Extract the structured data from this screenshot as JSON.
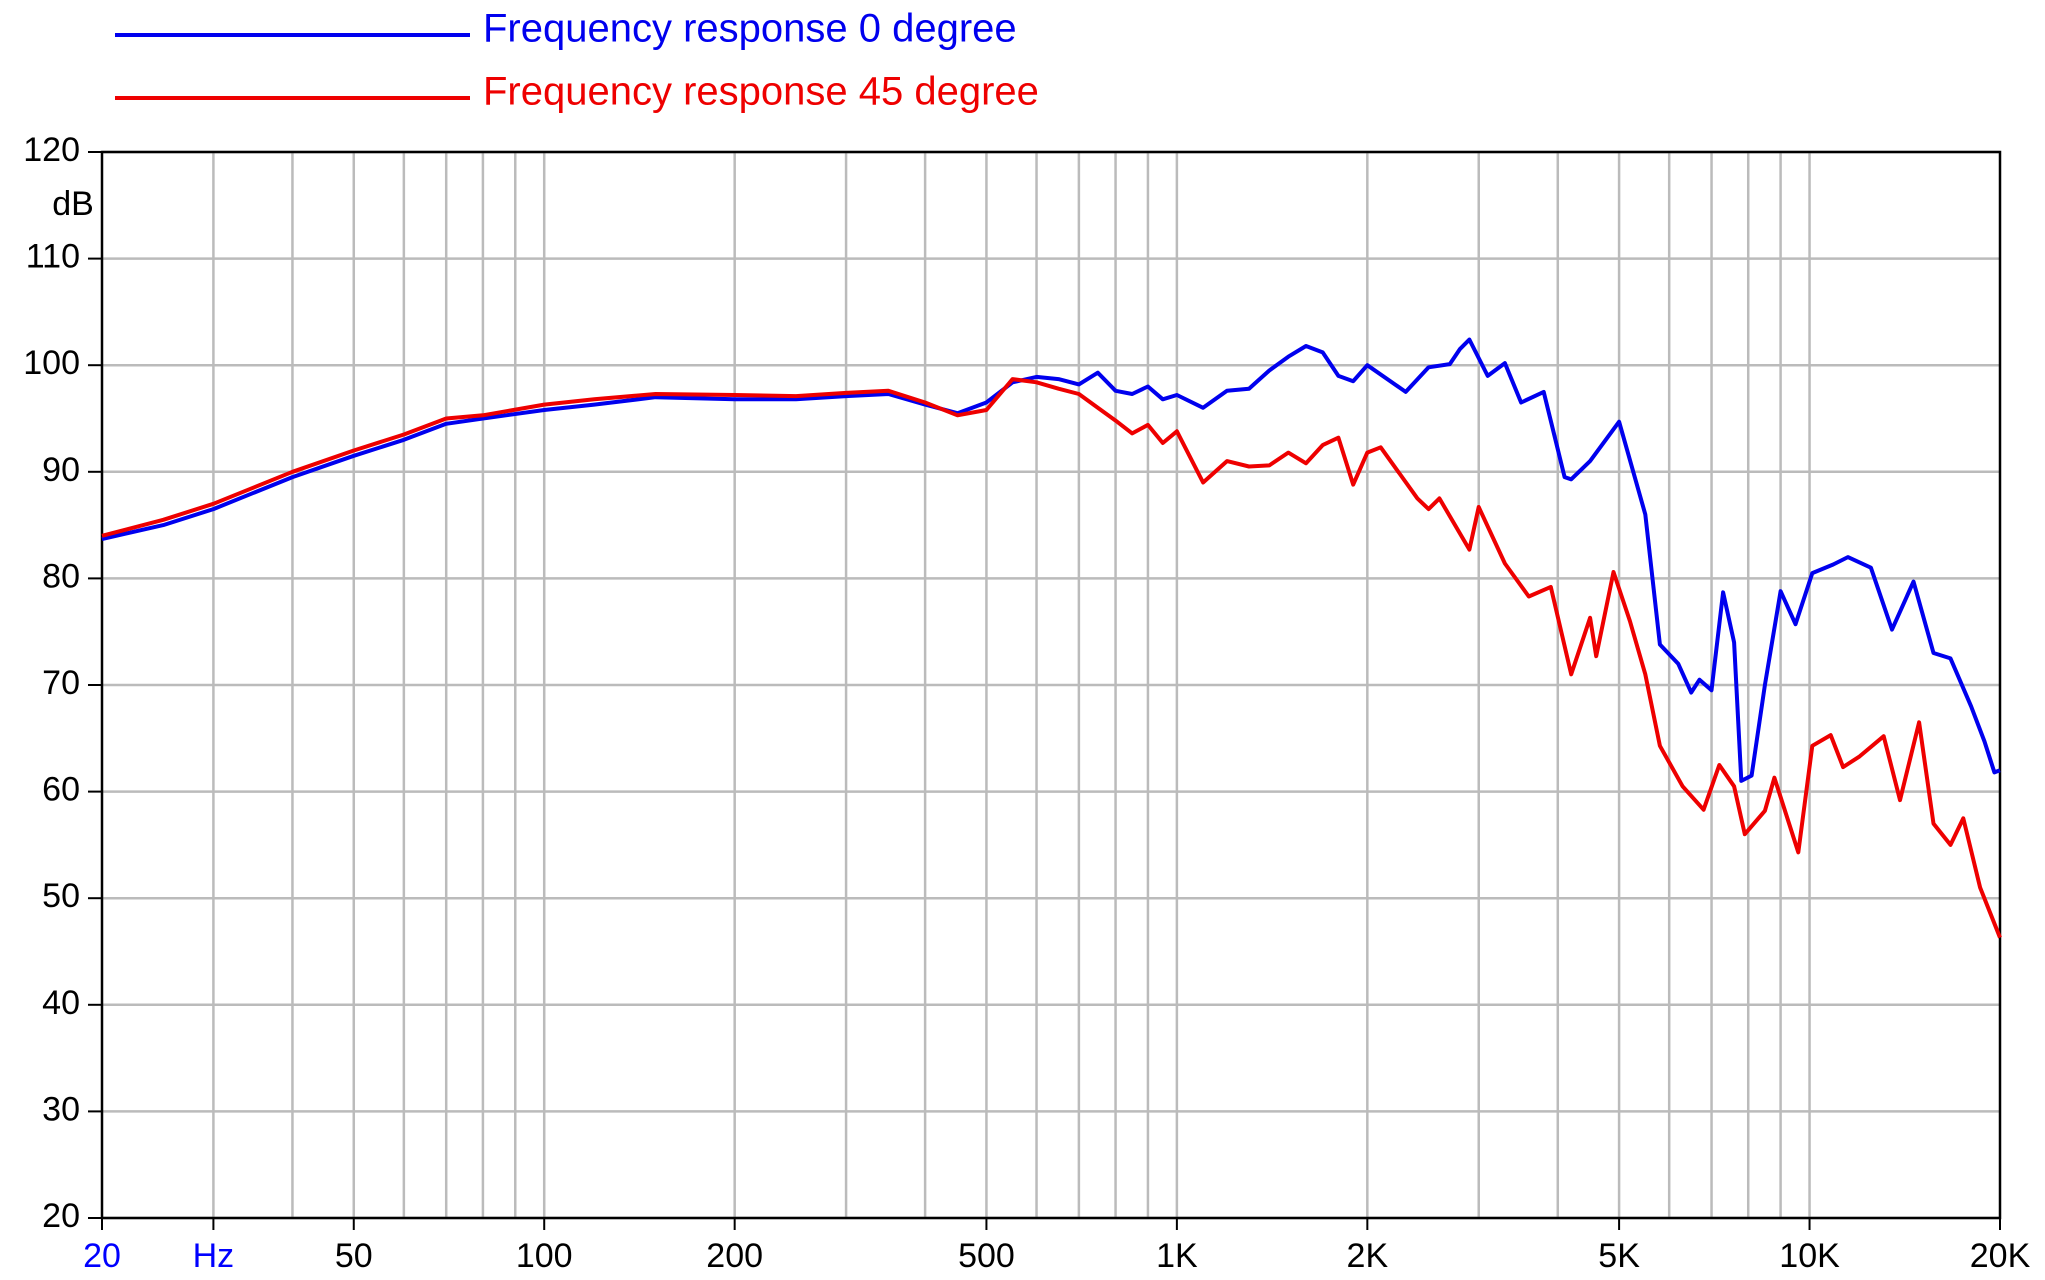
{
  "chart_data": {
    "type": "line",
    "y_unit": "dB",
    "xscale": "log",
    "xlim": [
      20,
      20000
    ],
    "ylim": [
      20,
      120
    ],
    "yticks": [
      20,
      30,
      40,
      50,
      60,
      70,
      80,
      90,
      100,
      110,
      120
    ],
    "xticks": [
      20,
      {
        "value": 30,
        "label": "Hz"
      },
      50,
      100,
      200,
      500,
      {
        "value": 1000,
        "label": "1K"
      },
      {
        "value": 2000,
        "label": "2K"
      },
      {
        "value": 5000,
        "label": "5K"
      },
      {
        "value": 10000,
        "label": "10K"
      },
      {
        "value": 20000,
        "label": "20K"
      }
    ],
    "xtick_colors": [
      "#0000ff",
      "#0000ff",
      "#000000",
      "#000000",
      "#000000",
      "#000000",
      "#000000",
      "#000000",
      "#000000",
      "#000000",
      "#000000"
    ],
    "xgrid": [
      30,
      40,
      50,
      60,
      70,
      80,
      90,
      100,
      200,
      300,
      400,
      500,
      600,
      700,
      800,
      900,
      1000,
      2000,
      3000,
      4000,
      5000,
      6000,
      7000,
      8000,
      9000,
      10000
    ],
    "grid": true,
    "series": [
      {
        "name": "Frequency response 0 degree",
        "color": "#0000ee",
        "x": [
          20,
          25,
          30,
          40,
          50,
          60,
          70,
          80,
          100,
          120,
          150,
          200,
          250,
          300,
          350,
          400,
          450,
          500,
          550,
          600,
          650,
          700,
          750,
          800,
          850,
          900,
          950,
          1000,
          1100,
          1200,
          1300,
          1400,
          1500,
          1600,
          1700,
          1800,
          1900,
          2000,
          2300,
          2500,
          2700,
          2800,
          2900,
          3100,
          3300,
          3500,
          3800,
          4100,
          4200,
          4500,
          5000,
          5500,
          5800,
          6200,
          6500,
          6700,
          7000,
          7300,
          7600,
          7800,
          8100,
          8500,
          9000,
          9500,
          10100,
          10900,
          11500,
          12500,
          13500,
          14600,
          15700,
          16700,
          18000,
          18900,
          19600,
          20000
        ],
        "values": [
          83.7,
          85,
          86.5,
          89.5,
          91.5,
          93,
          94.5,
          95,
          95.8,
          96.3,
          97,
          96.8,
          96.8,
          97.1,
          97.3,
          96.3,
          95.5,
          96.5,
          98.4,
          98.9,
          98.7,
          98.2,
          99.3,
          97.6,
          97.3,
          98,
          96.8,
          97.2,
          96,
          97.6,
          97.8,
          99.5,
          100.8,
          101.8,
          101.2,
          99,
          98.5,
          100,
          97.5,
          99.8,
          100.1,
          101.5,
          102.4,
          99,
          100.2,
          96.5,
          97.5,
          89.5,
          89.3,
          91,
          94.7,
          86,
          73.8,
          72,
          69.3,
          70.5,
          69.5,
          78.7,
          74,
          61,
          61.5,
          70,
          78.8,
          75.7,
          80.5,
          81.3,
          82,
          81,
          75.2,
          79.7,
          73,
          72.5,
          68,
          64.7,
          61.8,
          62
        ]
      },
      {
        "name": "Frequency response 45 degree",
        "color": "#ee0000",
        "x": [
          20,
          25,
          30,
          40,
          50,
          60,
          70,
          80,
          100,
          120,
          150,
          200,
          250,
          300,
          350,
          400,
          450,
          500,
          550,
          600,
          650,
          700,
          750,
          800,
          850,
          900,
          950,
          1000,
          1100,
          1200,
          1300,
          1400,
          1500,
          1600,
          1700,
          1800,
          1900,
          2000,
          2100,
          2400,
          2500,
          2600,
          2900,
          3000,
          3300,
          3600,
          3900,
          4200,
          4500,
          4600,
          4900,
          5200,
          5500,
          5800,
          6300,
          6800,
          7200,
          7600,
          7900,
          8500,
          8800,
          9600,
          10100,
          10800,
          11300,
          12000,
          13100,
          13900,
          14900,
          15700,
          16700,
          17500,
          18600,
          20000
        ],
        "values": [
          84,
          85.5,
          87,
          90,
          92,
          93.5,
          95,
          95.3,
          96.3,
          96.8,
          97.3,
          97.2,
          97.1,
          97.4,
          97.6,
          96.5,
          95.3,
          95.8,
          98.7,
          98.4,
          97.8,
          97.3,
          96,
          94.8,
          93.6,
          94.4,
          92.7,
          93.8,
          89,
          91,
          90.5,
          90.6,
          91.8,
          90.8,
          92.5,
          93.2,
          88.8,
          91.8,
          92.3,
          87.5,
          86.5,
          87.5,
          82.7,
          86.7,
          81.4,
          78.3,
          79.2,
          71,
          76.3,
          72.7,
          80.6,
          76,
          71,
          64.3,
          60.5,
          58.3,
          62.5,
          60.5,
          56,
          58.2,
          61.3,
          54.3,
          64.3,
          65.3,
          62.3,
          63.3,
          65.2,
          59.2,
          66.5,
          57,
          55,
          57.5,
          51,
          46.3
        ]
      }
    ]
  }
}
